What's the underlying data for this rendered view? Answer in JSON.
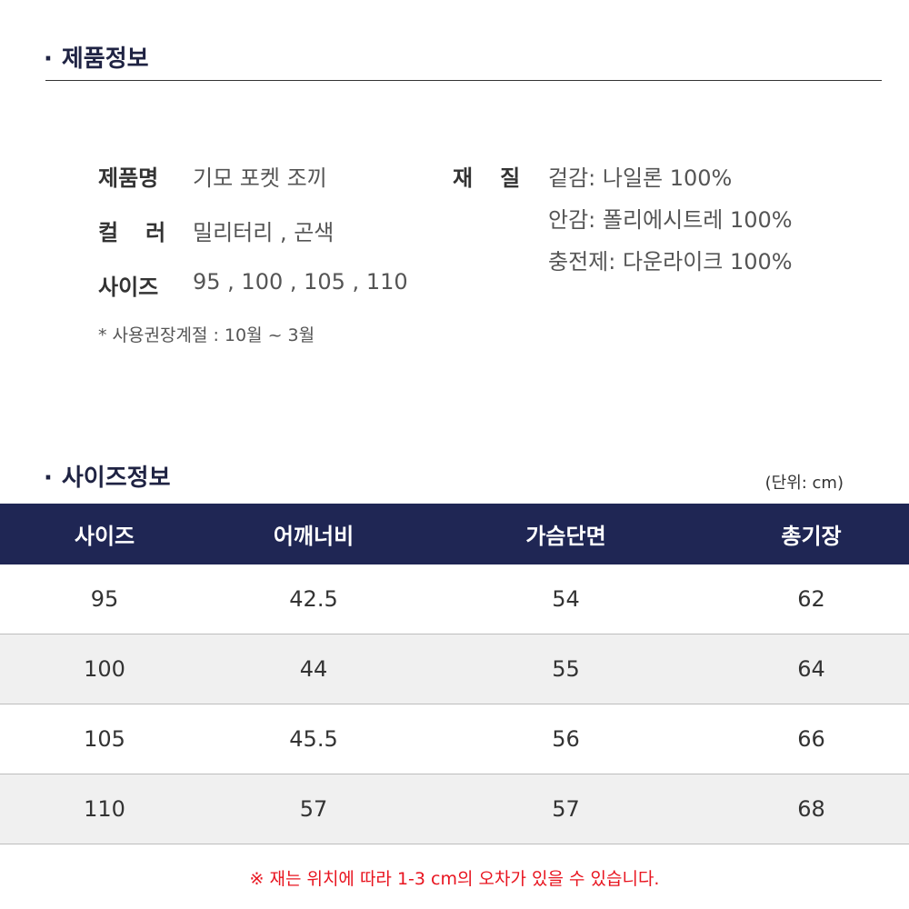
{
  "product_info": {
    "section_title": "제품정보",
    "bullet": "·",
    "name_label": "제품명",
    "name_value": "기모 포켓 조끼",
    "color_label": "컬러",
    "color_value": "밀리터리 , 곤색",
    "size_label": "사이즈",
    "size_value": "95 , 100 , 105 , 110",
    "material_label": "재질",
    "materials": [
      "겉감: 나일론 100%",
      "안감: 폴리에시트레 100%",
      "충전제: 다운라이크 100%"
    ],
    "season_note": "* 사용권장계절 : 10월 ~ 3월"
  },
  "size_info": {
    "section_title": "사이즈정보",
    "bullet": "·",
    "unit": "(단위: cm)",
    "columns": [
      "사이즈",
      "어깨너비",
      "가슴단면",
      "총기장"
    ],
    "rows": [
      [
        "95",
        "42.5",
        "54",
        "62"
      ],
      [
        "100",
        "44",
        "55",
        "64"
      ],
      [
        "105",
        "45.5",
        "56",
        "66"
      ],
      [
        "110",
        "57",
        "57",
        "68"
      ]
    ],
    "footnote": "※ 재는 위치에 따라 1-3 cm의 오차가 있을 수 있습니다."
  },
  "colors": {
    "header_bg": "#1f2654",
    "title_color": "#1f2343",
    "alt_row_bg": "#f0f0f0",
    "footnote_color": "#e8141f"
  }
}
